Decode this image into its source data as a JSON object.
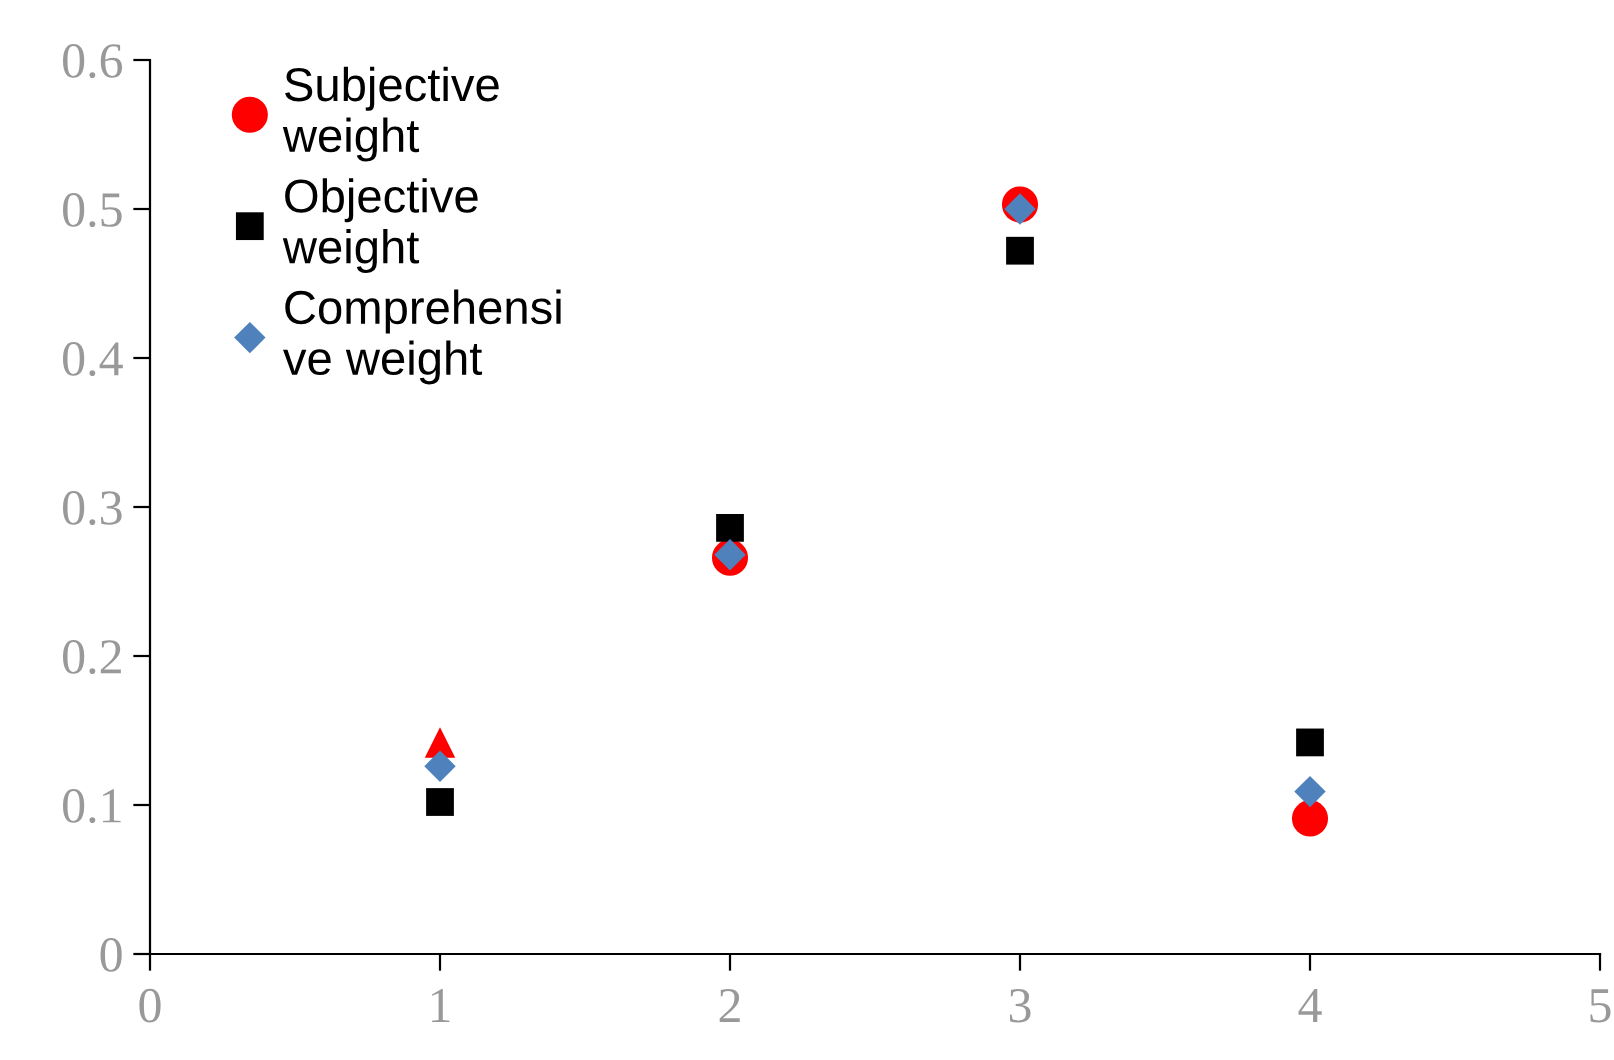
{
  "chart_data": {
    "type": "scatter",
    "x": [
      1,
      2,
      3,
      4
    ],
    "xlim": [
      0,
      5
    ],
    "xticks": [
      0,
      1,
      2,
      3,
      4,
      5
    ],
    "ylim": [
      0,
      0.6
    ],
    "yticks": [
      0,
      0.1,
      0.2,
      0.3,
      0.4,
      0.5,
      0.6
    ],
    "grid": false,
    "legend": "top left",
    "series": [
      {
        "name": "Subjective\nweight",
        "color": "#ff0000",
        "marker": "circle",
        "values": [
          null,
          0.266,
          0.503,
          0.091
        ]
      },
      {
        "name": "Objective\nweight",
        "color": "#000000",
        "marker": "square",
        "values": [
          0.102,
          0.286,
          0.472,
          0.142
        ]
      },
      {
        "name": "Comprehensi\nve weight",
        "color": "#4f81bd",
        "marker": "diamond",
        "values": [
          0.126,
          0.268,
          0.5,
          0.109
        ]
      },
      {
        "color": "#ff0000",
        "marker": "triangle",
        "values": [
          0.142,
          null,
          null,
          null
        ]
      }
    ]
  }
}
